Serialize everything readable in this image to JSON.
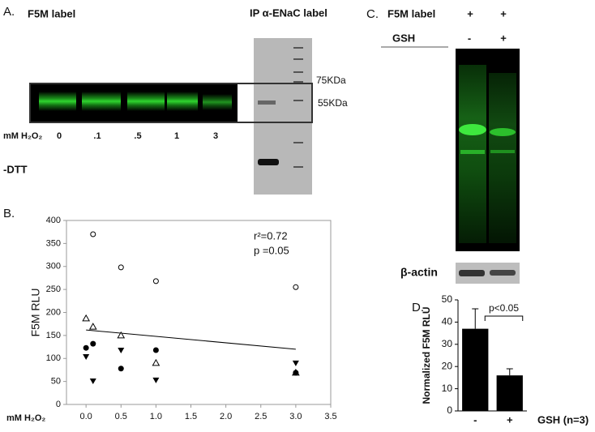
{
  "panel_a": {
    "letter": "A.",
    "title": "F5M label",
    "ip_title": "IP α-ENaC label",
    "markers": [
      "75KDa",
      "55KDa"
    ],
    "axis_label": "mM H₂O₂",
    "lanes": [
      "0",
      ".1",
      ".5",
      "1",
      "3"
    ],
    "condition": "-DTT"
  },
  "panel_b": {
    "letter": "B."
  },
  "panel_c": {
    "letter": "C.",
    "row1_label": "F5M label",
    "row1": [
      "+",
      "+"
    ],
    "row2_label": "GSH",
    "row2": [
      "-",
      "+"
    ],
    "loading_label": "β-actin"
  },
  "panel_d": {
    "letter": "D."
  },
  "chart_data": [
    {
      "type": "scatter",
      "ylabel": "F5M RLU",
      "xlabel": "mM H₂O₂",
      "annotations": [
        "r²=0.72",
        "p =0.05"
      ],
      "x": [
        0,
        0.1,
        0.5,
        1,
        3
      ],
      "series": [
        {
          "marker": "circle-open",
          "color": "#000000",
          "values": [
            null,
            370,
            298,
            268,
            255
          ]
        },
        {
          "marker": "triangle-open",
          "color": "#000000",
          "values": [
            187,
            169,
            150,
            90,
            69
          ]
        },
        {
          "marker": "circle-filled",
          "color": "#000000",
          "values": [
            123,
            132,
            78,
            118,
            69
          ]
        },
        {
          "marker": "triangle-down-filled",
          "color": "#000000",
          "values": [
            104,
            51,
            118,
            53,
            90
          ]
        }
      ],
      "fit": {
        "x": [
          0,
          3
        ],
        "values": [
          162,
          120
        ]
      },
      "xlim": [
        -0.28,
        3.5
      ],
      "ylim": [
        0,
        400
      ],
      "xticks": [
        {
          "value": 0,
          "label": "0.0"
        },
        0.5,
        {
          "value": 1,
          "label": "1.0"
        },
        1.5,
        {
          "value": 2,
          "label": "2.0"
        },
        2.5,
        {
          "value": 3,
          "label": "3.0"
        },
        3.5
      ],
      "yticks": [
        0,
        50,
        100,
        150,
        200,
        250,
        300,
        350,
        400
      ]
    },
    {
      "type": "bar",
      "ylabel": "Normalized  F5M RLU",
      "xlabel": "GSH (n=3)",
      "annotations": [
        "p<0.05"
      ],
      "categories": [
        "-",
        "+"
      ],
      "values": [
        37,
        16
      ],
      "errors": [
        9,
        3
      ],
      "color": "#000000",
      "ylim": [
        0,
        50
      ],
      "yticks": [
        0,
        10,
        20,
        30,
        40,
        50
      ]
    }
  ]
}
